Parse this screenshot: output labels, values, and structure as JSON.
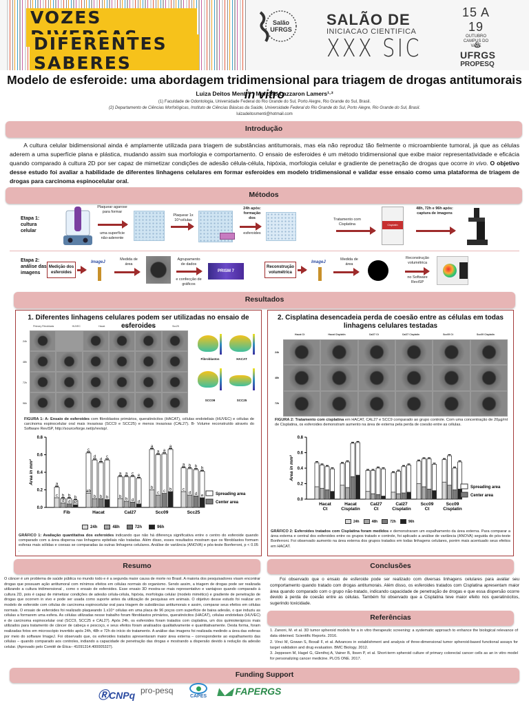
{
  "header": {
    "banner_line1": "VOZES DIVERSAS",
    "banner_line2": "DIFERENTES SABERES",
    "salao_logo_text": "Salão UFRGS 2018",
    "sic_title": "SALÃO DE",
    "sic_subtitle": "INICIACAO CIENTIFICA",
    "sic_big": "XXX SIC",
    "dates": "15 A 19",
    "month": "OUTUBRO",
    "campus": "CAMPUS DO VALE",
    "university": "UFRGS",
    "dept": "PROPESQ"
  },
  "paper": {
    "title": "Modelo de esferoide: uma abordagem tridimensional para triagem de drogas antitumorais",
    "title_italic": "in vitro",
    "authors": "Luiza Deitos Menti¹, , Marcelo Lazzaron Lamers¹·²",
    "affiliation1": "(1) Faculdade de Odontologia, Universidade Federal do Rio Grande do Sul, Porto Alegre, Rio Grande do Sul, Brasil.",
    "affiliation2": "(2) Departamento de Ciências Morfológicas, Instituto de Ciências Básicas da Saúde, Universidade Federal do Rio Grande do Sul, Porto Alegre, Rio Grande do Sul, Brasil.",
    "email": "luizadeitosmenti@hotmail.com"
  },
  "introducao": {
    "heading": "Introdução",
    "text_part1": "A cultura celular bidimensional ainda é amplamente utilizada para triagem de substâncias antitumorais, mas ela não reproduz tão fielmente o microambiente tumoral, já que as células aderem a uma superfície plana e plástica, mudando assim sua morfologia e comportamento. O ensaio de esferoides é um método tridimensional que exibe maior representatividade e eficácia quando comparado à cultura 2D por ser capaz de mimetizar condições de adesão célula-célula, hipóxia, morfologia celular e gradiente de penetração de drogas que ocorre ",
    "text_italic": "in vivo.",
    "text_bold": " O objetivo desse estudo foi avaliar a habilidade de diferentes linhagens celulares em formar esferoides em modelo tridimensional e validar esse ensaio como uma plataforma de triagem de drogas para  carcinoma espinocelular oral."
  },
  "metodos": {
    "heading": "Métodos",
    "etapa1": "Etapa 1: cultura celular",
    "etapa1_steps": [
      "Plaquear agarose para formar",
      "uma superfície não-aderente",
      "Plaquear 1x 10⁴células",
      "24h após: formação dos",
      "esferoides",
      "Tratamento com Cisplatina",
      "48h, 72h e 96h após: captura de imagens"
    ],
    "cisplatin_label": "Cisplatin",
    "etapa2": "Etapa 2: análise das imagens",
    "etapa2_steps": [
      "Medição dos esferoides",
      "ImageJ",
      "Medida de área",
      "Agrupamento de dados",
      "e confecção de gráficos",
      "PRISM 7",
      "Reconstrução volumétrica",
      "ImageJ",
      "Medida de área",
      "Reconstrução volumétrica",
      "no Software ReviSP"
    ]
  },
  "resultados": {
    "heading": "Resultados",
    "fig1": {
      "title": "1. Diferentes linhagens celulares podem ser utilizadas no ensaio de esferoides",
      "columns": [
        "Primary Fibroblasts",
        "HUVEC",
        "Hacat",
        "Cal27",
        "Scc09",
        "Scc25"
      ],
      "rows": [
        "24h",
        "48h",
        "72h",
        "96h"
      ],
      "volume_labels": [
        "Fibroblastos",
        "HACAT",
        "SCC09",
        "SCC25"
      ],
      "caption_bold_prefix": "FIGURA 1:",
      "caption_bold": " A- Ensaio de esferoides",
      "caption_rest": " com fibroblastos primários, queratinócitos (HACAT), células endoteliais (HUVEC) e células de carcinoma espinocelular oral mais invasivas (SCC9 e SCC25) e menos invasivas (CAL27). B- Volume reconstruído através do Software ReviSP, http://sourceforge.net/p/revisp/."
    },
    "graph1_caption_bold": "GRÁFICO 1: Avaliação quantitativa dos esferoides",
    "graph1_caption_rest": " indicando que não há diferença significativa entre o centro do esferoide quando comparado com a área dispersa nas linhagens epiteliais não tratadas. Além disso, esses resultados mostram que os fibroblastos formam esferas mais sólidas e coesas se comparadas às outras linhagens celulares. Análise de variância (ANOVA) e pós-teste Bonferroni, p < 0.05 .",
    "fig2": {
      "title": "2. Cisplatina desencadeia perda de coesão entre as células em todas linhagens celulares testadas",
      "columns": [
        "Hacat Ct",
        "Hacat Cisplatin",
        "Cal27 Ct",
        "Cal27 Cisplatin",
        "Scc09 Ct",
        "Scc09 Cisplatin"
      ],
      "rows": [
        "24h",
        "48h",
        "72h"
      ],
      "caption_bold": "FIGURA 2: Tratamento com cisplatina",
      "caption_rest": " em HACAT, CAL27 e SCC9 comparado ao grupo controle.  Com uma concentração de 20µg/ml de Cisplatina, os esferoides demonstram aumento na área de externa pela perda de coesão entre as células."
    },
    "graph2_caption_bold": "GRÁFICO 2: Esferoides tratados com Cisplatina foram medidos",
    "graph2_caption_rest": " e demonstraram um espalhamento da área externa. Para comparar a área externa e central dos esferoides entre os grupos tratado e controle, foi aplicado a análise de variância (ANOVA) seguida do pós-teste Bonferroni. Foi observado aumento na área externa dos grupos tratados em todas linhagens celulares, porém mais acentuado seus efeitos em HACAT."
  },
  "chart_data": [
    {
      "type": "bar",
      "title": "Gráfico 1",
      "xlabel": "",
      "ylabel": "Area in mm²",
      "ylim": [
        0,
        0.8
      ],
      "yticks": [
        "0.0",
        "0.2",
        "0.4",
        "0.6",
        "0.8"
      ],
      "categories": [
        "Fib",
        "Hacat",
        "Cal27",
        "Scc09",
        "Scc25"
      ],
      "timepoints": [
        "24h",
        "48h",
        "72h",
        "96h"
      ],
      "series": [
        {
          "name": "Spreading area (total)",
          "values": [
            [
              0.23,
              0.1,
              0.1,
              0.08
            ],
            [
              0.62,
              0.54,
              0.51,
              0.54
            ],
            [
              0.35,
              0.35,
              0.35,
              0.33
            ],
            [
              0.66,
              0.6,
              0.61,
              0.66
            ],
            [
              0.45,
              0.44,
              0.43,
              0.41
            ]
          ]
        },
        {
          "name": "Center area",
          "values": [
            [
              0.11,
              0.05,
              0.04,
              0.03
            ],
            [
              0.16,
              0.1,
              0.1,
              0.09
            ],
            [
              0.1,
              0.07,
              0.06,
              0.04
            ],
            [
              0.2,
              0.14,
              0.16,
              0.18
            ],
            [
              0.18,
              0.14,
              0.13,
              0.11
            ]
          ]
        }
      ],
      "total_letters": [
        [
          "a",
          "b",
          "b",
          "b"
        ],
        [
          "c",
          "d",
          "d",
          "c"
        ],
        [
          "a",
          "a",
          "c",
          "e"
        ],
        [
          "a",
          "a",
          "a",
          "a"
        ],
        [
          "a",
          "b",
          "b",
          "b"
        ]
      ],
      "center_letters": [
        [
          "c",
          "d",
          "d",
          "ac"
        ],
        [
          "ab",
          "b",
          "b",
          "b"
        ],
        [
          "b",
          "b",
          "d",
          "d"
        ],
        [
          "b",
          "c",
          "c",
          "b"
        ],
        [
          "c",
          "d",
          "d",
          "e"
        ]
      ],
      "legend": [
        "Spreading area",
        "Center area"
      ],
      "time_legend": [
        "24h",
        "48h",
        "72h",
        "96h"
      ]
    },
    {
      "type": "bar",
      "title": "Gráfico 2",
      "xlabel": "",
      "ylabel": "Area in mm²",
      "ylim": [
        0,
        0.8
      ],
      "yticks": [
        "0.0",
        "0.2",
        "0.4",
        "0.6",
        "0.8"
      ],
      "categories": [
        "Hacat Ct",
        "Hacat Cisplatin",
        "Cal27 Ct",
        "Cal27 Cisplatin",
        "Scc09 Ct",
        "Scc09 Cisplatin"
      ],
      "timepoints": [
        "24h",
        "48h",
        "72h",
        "96h"
      ],
      "series": [
        {
          "name": "Spreading area (total)",
          "values": [
            [
              0.47,
              0.44,
              0.42,
              0.39
            ],
            [
              0.46,
              0.48,
              0.72,
              0.73
            ],
            [
              0.37,
              0.37,
              0.4,
              0.39
            ],
            [
              0.34,
              0.36,
              0.42,
              0.44
            ],
            [
              0.49,
              0.52,
              0.52,
              0.45
            ],
            [
              0.51,
              0.56,
              0.4,
              0.48
            ]
          ]
        },
        {
          "name": "Center area",
          "values": [
            [
              0.16,
              0.14,
              0.12,
              0.1
            ],
            [
              0.18,
              0.15,
              0.29,
              0.31
            ],
            [
              0.1,
              0.07,
              0.06,
              0.04
            ],
            [
              0.09,
              0.07,
              0.08,
              0.09
            ],
            [
              0.2,
              0.16,
              0.13,
              0.11
            ],
            [
              0.22,
              0.18,
              0.12,
              0.13
            ]
          ]
        }
      ],
      "legend": [
        "Spreading area",
        "Center area"
      ],
      "time_legend": [
        "24h",
        "48h",
        "72h",
        "96h"
      ]
    }
  ],
  "resumo": {
    "heading": "Resumo",
    "text": "O câncer é um problema de saúde pública no mundo todo e é a segunda maior causa de morte no Brasil. A maioria dos pesquisadores visam encontrar drogas que possuam ação antitumoral com mínimos efeitos em células normais do organismo. Sendo assim, a triagem de drogas pode ser realizada utilizando a cultura tridimensional , como o ensaio de esferoides. Esse ensaio 3D mostra-se mais representativo e vantajoso quando comparado à cultura 2D, pois é capaz de mimetizar condições de adesão célula-célula, hipóxia, morfologia celular (modelo mimético)  e gradiente de penetração de drogas que ocorrem in vivo  e pode ser usada como suporte antes da utilização de pesquisas em animais. O objetivo desse estudo foi realizar um modelo de esferoide com células de carcinoma espinocelular oral para triagem de substâncias antitumorais e assim, comparar seus efeitos em células normais. O ensaio de esferoides foi realizado plaqueando 1.x10⁴ células em uma placa de 96 poços com superfície de baixa adesão, o que induziu as células a formarem uma esfera. As células utilizadas nesse trabalho foram fibroblastos primários, queratinócitos (HACAT), células endoteliais (HUVEC) e de carcinoma espinocelular oral (SCC9, SCC25 e CAL27). Após 24h, os esferoides foram tratados com cisplatina, um dos quimioterápicos mais utilizados para tratamento de câncer de cabeça e pescoço, e seus efeitos foram analisados qualitativamente e quantitativamente. Desta forma, foram realizadas fotos em microscópio invertido após 24h, 48h e 72h do início do tratamento. A análise das imagens foi realizada medindo a área das esferas por meio do software ImageJ. Foi observado que, os esferoides tratados apresentaram maior área externa – correspondente ao espalhamento das células – quando comparado aos controles, indiando a capacidade de penetração das drogas e mostrando a dispersão devido à redução da adesão celular. (Aprovado pelo Comitê de Ética– 41091314.400005327)."
  },
  "conclusoes": {
    "heading": "Conclusões",
    "text": "Foi observado que o ensaio de esferoide pode ser realizado com diversas linhagens celulares para avaliar seu comportamento quando tratado com drogas antitumorais. Além disso, os esferoides tratados com Cisplatina apresentam maior área quando comparado com o grupo não-tratado, indicando capacidade de penetração de drogas e que essa dispersão ocorre devido à perda de coesão entre as células. Também foi observado que a Cisplatina teve maior efeito nos queratinócitos, sugerindo toxicidade."
  },
  "referencias": {
    "heading": "Referências",
    "items": [
      "1. Zanoni, M. et al. 3D tumor spheroid models for a in vitro therapeutic screening: a systematic approach to enhance the biological relevance of data obteined. Scientific Reports. 2016.",
      "2. Vinci M, Gowan S, Boxall F, et al. Advances in establishment and analysis of three-dimensional tumor spheroid-based functional assays for target validation and drug evaluation. BMC Biology. 2012.",
      "3. Jeppesen M, Hagel G, Glenthoj A, Vainer B, Ibsen P, et al. Short-term spheroid culture of primary colorectal cancer cells as an in vitro model for personalizing cancer medicine. PLOS ONE. 2017."
    ]
  },
  "funding": {
    "heading": "Funding Support",
    "logos": [
      "CNPq",
      "pro-pesq",
      "CAPES",
      "FAPERGS"
    ]
  },
  "colors": {
    "section_header_bg": "#e7b5b5",
    "card_border": "#a33a3a",
    "arrow": "#9e2b2b",
    "banner_yellow": "#f6c21b"
  }
}
